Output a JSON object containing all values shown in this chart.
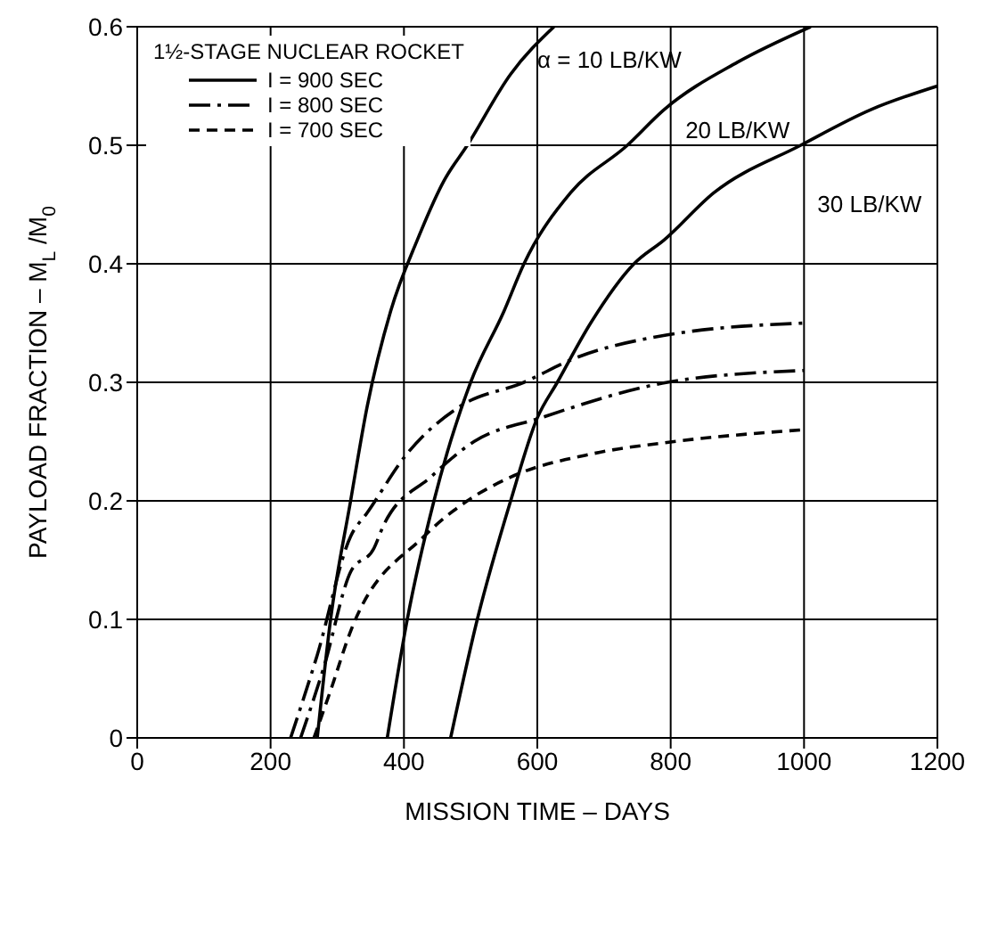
{
  "chart_data": {
    "type": "line",
    "xlabel": "MISSION TIME – DAYS",
    "ylabel": "PAYLOAD FRACTION – M$_{L}$ /M$_{0}$",
    "legend_title": "1½-STAGE NUCLEAR ROCKET",
    "xlim": [
      0,
      1200
    ],
    "xticks": [
      0,
      200,
      400,
      600,
      800,
      1000,
      1200
    ],
    "ylim": [
      0,
      0.6
    ],
    "yticks": [
      0,
      0.1,
      0.2,
      0.3,
      0.4,
      0.5,
      0.6
    ],
    "grid": true,
    "legend": "top left",
    "marker": "none",
    "series": [
      {
        "name": "I = 900 SEC",
        "color": "#000000",
        "line_style": "solid",
        "x": [
          270,
          290,
          320,
          345,
          380,
          420,
          460,
          495,
          560,
          625
        ],
        "values": [
          0,
          0.1,
          0.2,
          0.28,
          0.36,
          0.42,
          0.47,
          0.5,
          0.56,
          0.6
        ]
      },
      {
        "color": "#000000",
        "line_style": "solid",
        "x": [
          375,
          405,
          445,
          500,
          550,
          580,
          650,
          735,
          790,
          900,
          1010
        ],
        "values": [
          0,
          0.1,
          0.2,
          0.3,
          0.36,
          0.4,
          0.46,
          0.5,
          0.53,
          0.57,
          0.6
        ]
      },
      {
        "color": "#000000",
        "line_style": "solid",
        "x": [
          470,
          510,
          560,
          600,
          630,
          680,
          745,
          790,
          865,
          995,
          1100,
          1200
        ],
        "values": [
          0,
          0.1,
          0.2,
          0.27,
          0.3,
          0.35,
          0.4,
          0.42,
          0.46,
          0.5,
          0.53,
          0.55
        ]
      },
      {
        "name": "I = 800 SEC",
        "color": "#000000",
        "line_style": "dashdot",
        "x": [
          230,
          270,
          320,
          345,
          405,
          485,
          580,
          655,
          795,
          1000
        ],
        "values": [
          0,
          0.07,
          0.17,
          0.19,
          0.24,
          0.28,
          0.3,
          0.32,
          0.34,
          0.35
        ]
      },
      {
        "color": "#000000",
        "line_style": "dashdot",
        "x": [
          245,
          280,
          320,
          355,
          370,
          440,
          505,
          605,
          795,
          1000
        ],
        "values": [
          0,
          0.06,
          0.14,
          0.16,
          0.18,
          0.22,
          0.25,
          0.27,
          0.3,
          0.31
        ]
      },
      {
        "name": "I = 700 SEC",
        "color": "#000000",
        "line_style": "dashed",
        "x": [
          265,
          290,
          320,
          430,
          495,
          560,
          685,
          805,
          1000
        ],
        "values": [
          0,
          0.04,
          0.09,
          0.17,
          0.2,
          0.22,
          0.24,
          0.25,
          0.26
        ]
      }
    ],
    "annotations": [
      "α = 10 LB/KW",
      "20 LB/KW",
      "30 LB/KW"
    ]
  }
}
